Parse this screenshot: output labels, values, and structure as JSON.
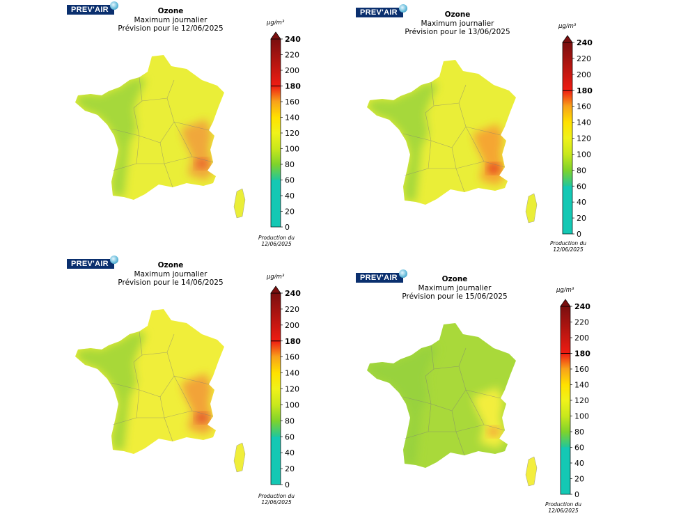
{
  "logo_text": "PREV'AIR",
  "unit_label": "µg/m³",
  "production_label": "Production du",
  "production_date": "12/06/2025",
  "scale_ticks": [
    "0",
    "20",
    "40",
    "60",
    "80",
    "100",
    "120",
    "140",
    "160",
    "180",
    "200",
    "220",
    "240"
  ],
  "colors": {
    "c0": "#14c8b4",
    "c60": "#22c79a",
    "c80": "#7fd32b",
    "c100": "#c9e81c",
    "c120": "#f0f21a",
    "c140": "#ffe100",
    "c160": "#f8a21a",
    "c180": "#ef1c12",
    "c240": "#7a0f0f",
    "brand": "#0a2f6e"
  },
  "panels": [
    {
      "title": "Ozone",
      "subtitle": "Maximum journalier",
      "forecast": "Prévision pour le 12/06/2025",
      "base": "#eaee38",
      "west": "#a6d83a",
      "hot": "#f0a73a",
      "spot": "#e85a2a"
    },
    {
      "title": "Ozone",
      "subtitle": "Maximum journalier",
      "forecast": "Prévision pour le 13/06/2025",
      "base": "#eaee38",
      "west": "#a6d83a",
      "hot": "#f5a631",
      "spot": "#e33b1f"
    },
    {
      "title": "Ozone",
      "subtitle": "Maximum journalier",
      "forecast": "Prévision pour le 14/06/2025",
      "base": "#f0ee3a",
      "west": "#a8d838",
      "hot": "#f2a337",
      "spot": "#e04c2a"
    },
    {
      "title": "Ozone",
      "subtitle": "Maximum journalier",
      "forecast": "Prévision pour le 15/06/2025",
      "base": "#a9d93a",
      "west": "#98d23e",
      "hot": "#f3ee3e",
      "spot": "#f3a338"
    }
  ]
}
